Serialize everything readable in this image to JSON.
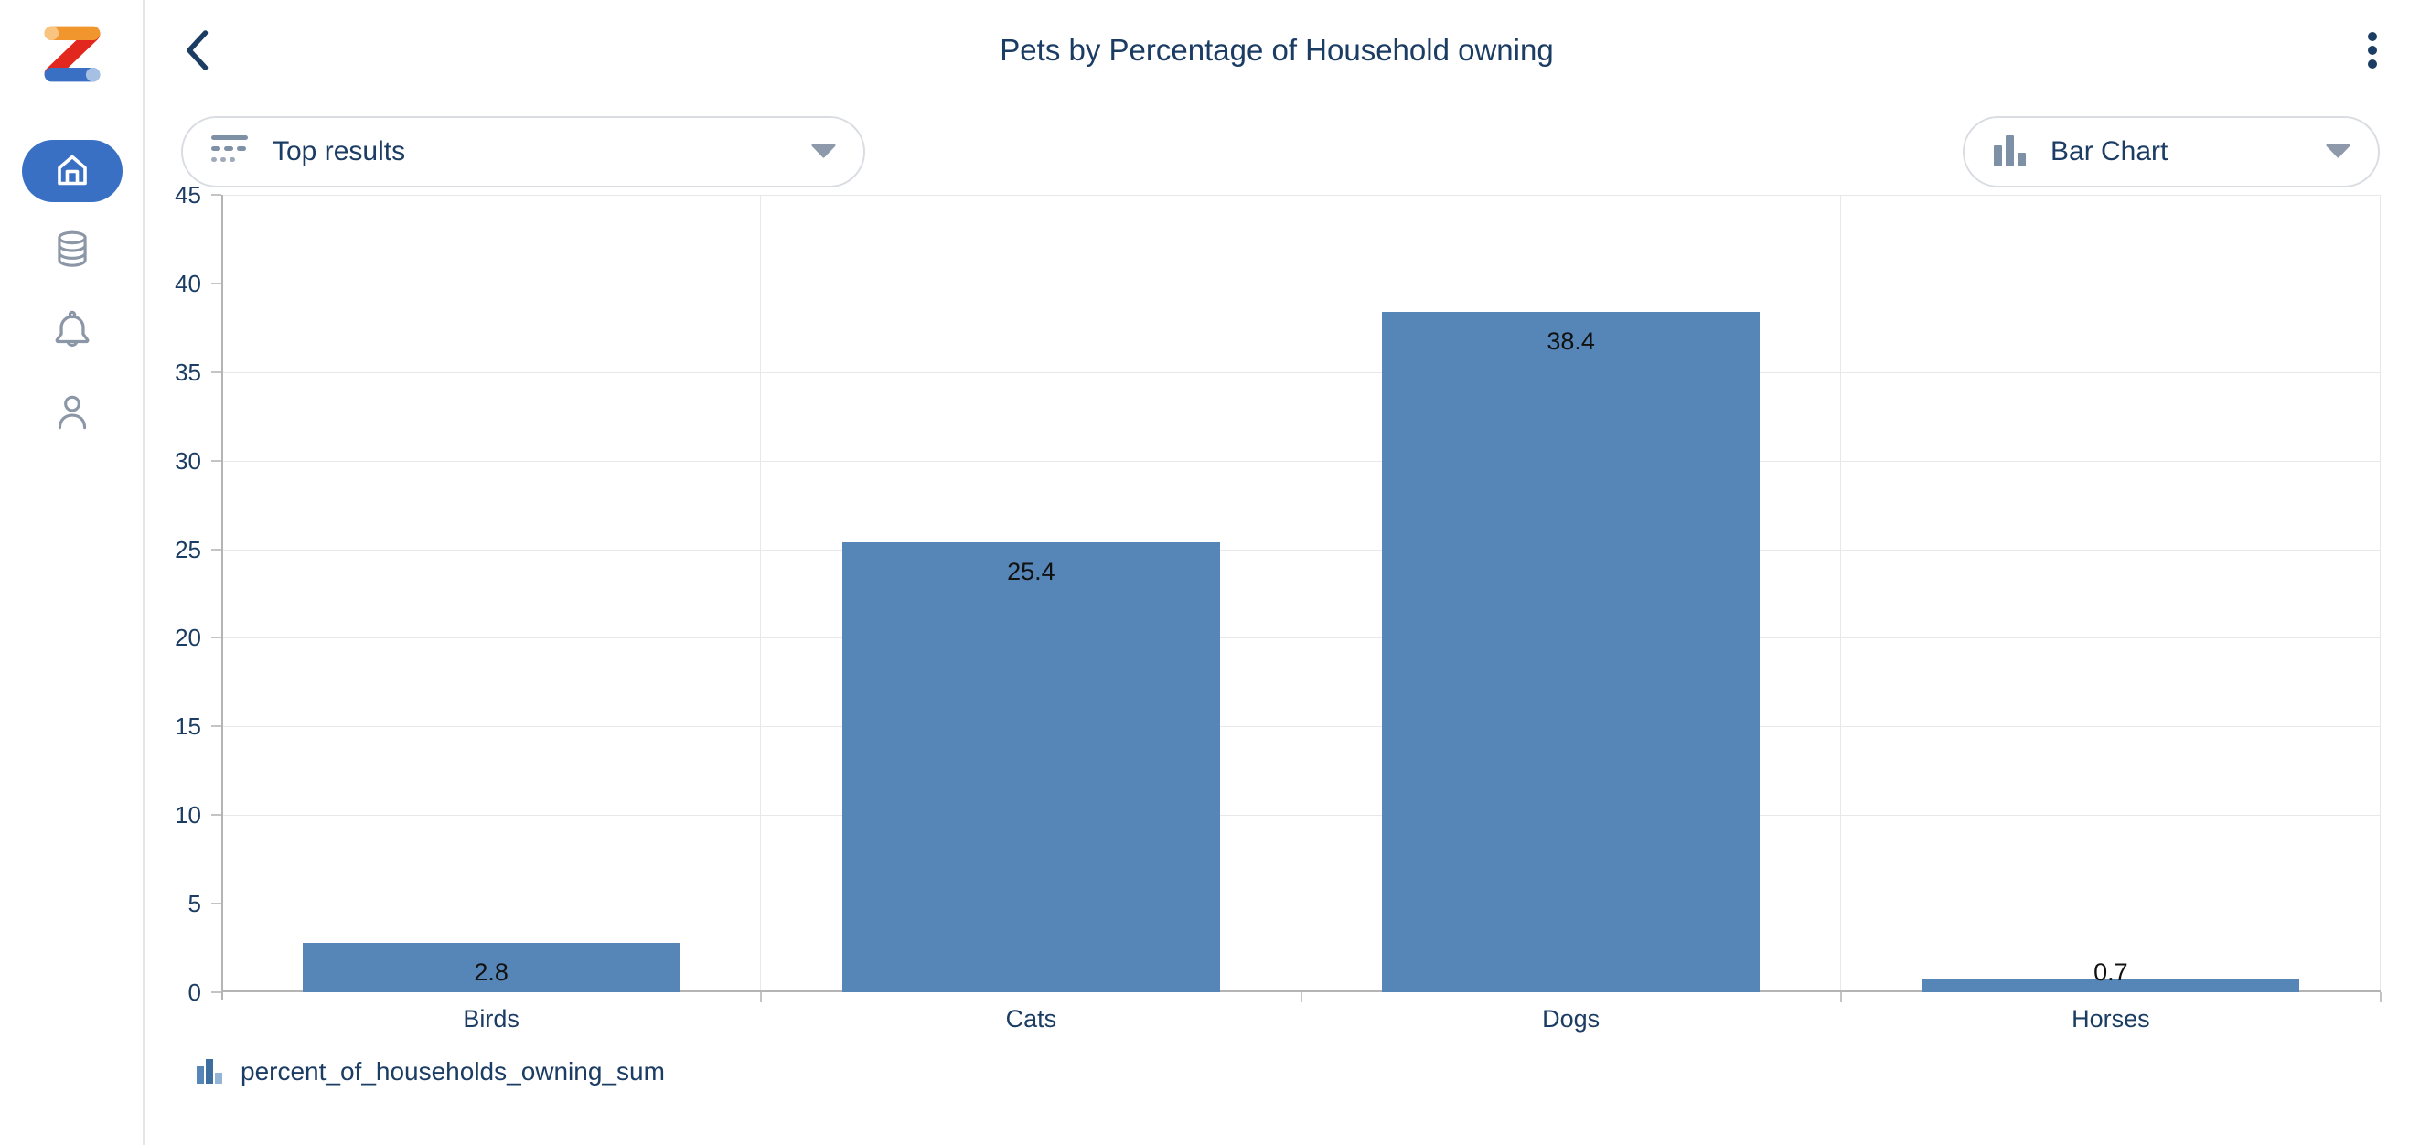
{
  "colors": {
    "accent_blue": "#3a70c4",
    "navy_text": "#1b3c63",
    "bar_blue": "#5685b7",
    "icon_slate": "#7e90a5",
    "logo_orange": "#f0962d",
    "logo_orange_light": "#f8c480",
    "logo_red": "#e2271e",
    "logo_blue": "#3a70c4",
    "logo_blue_light": "#a6c0e4"
  },
  "sidebar": {
    "items": [
      {
        "id": "home",
        "icon": "home-icon",
        "active": true
      },
      {
        "id": "data",
        "icon": "database-icon",
        "active": false
      },
      {
        "id": "notifications",
        "icon": "bell-icon",
        "active": false
      },
      {
        "id": "profile",
        "icon": "user-icon",
        "active": false
      }
    ]
  },
  "topbar": {
    "title": "Pets by Percentage of Household owning"
  },
  "controls": {
    "results_dropdown": {
      "label": "Top results",
      "icon": "top-results-icon"
    },
    "chart_type_dropdown": {
      "label": "Bar Chart",
      "icon": "bar-chart-icon"
    }
  },
  "chart_data": {
    "type": "bar",
    "title": "Pets by Percentage of Household owning",
    "categories": [
      "Birds",
      "Cats",
      "Dogs",
      "Horses"
    ],
    "values": [
      2.8,
      25.4,
      38.4,
      0.7
    ],
    "series_name": "percent_of_households_owning_sum",
    "xlabel": "",
    "ylabel": "",
    "ylim": [
      0,
      45
    ],
    "ytick_step": 5,
    "grid": true,
    "value_labels": true,
    "legend_position": "bottom",
    "bar_color": "#5685b7",
    "bar_width_fraction": 0.7
  },
  "legend": {
    "label": "percent_of_households_owning_sum"
  }
}
